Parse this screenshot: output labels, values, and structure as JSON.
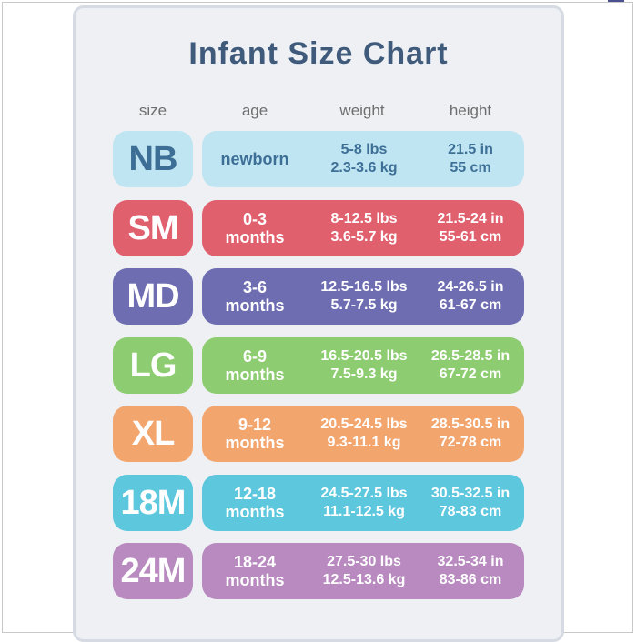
{
  "title": "Infant Size Chart",
  "headers": {
    "size": "size",
    "age": "age",
    "weight": "weight",
    "height": "height"
  },
  "rows": [
    {
      "size": "NB",
      "age": [
        "newborn"
      ],
      "weight": [
        "5-8 lbs",
        "2.3-3.6 kg"
      ],
      "height": [
        "21.5 in",
        "55 cm"
      ],
      "color": "#bfe4f2",
      "light": true
    },
    {
      "size": "SM",
      "age": [
        "0-3",
        "months"
      ],
      "weight": [
        "8-12.5 lbs",
        "3.6-5.7 kg"
      ],
      "height": [
        "21.5-24 in",
        "55-61 cm"
      ],
      "color": "#e1606e"
    },
    {
      "size": "MD",
      "age": [
        "3-6",
        "months"
      ],
      "weight": [
        "12.5-16.5 lbs",
        "5.7-7.5 kg"
      ],
      "height": [
        "24-26.5 in",
        "61-67 cm"
      ],
      "color": "#6e6db2"
    },
    {
      "size": "LG",
      "age": [
        "6-9",
        "months"
      ],
      "weight": [
        "16.5-20.5 lbs",
        "7.5-9.3 kg"
      ],
      "height": [
        "26.5-28.5 in",
        "67-72 cm"
      ],
      "color": "#8dcc70"
    },
    {
      "size": "XL",
      "age": [
        "9-12",
        "months"
      ],
      "weight": [
        "20.5-24.5 lbs",
        "9.3-11.1 kg"
      ],
      "height": [
        "28.5-30.5 in",
        "72-78 cm"
      ],
      "color": "#f3a56e"
    },
    {
      "size": "18M",
      "age": [
        "12-18",
        "months"
      ],
      "weight": [
        "24.5-27.5 lbs",
        "11.1-12.5 kg"
      ],
      "height": [
        "30.5-32.5 in",
        "78-83 cm"
      ],
      "color": "#5cc7dd"
    },
    {
      "size": "24M",
      "age": [
        "18-24",
        "months"
      ],
      "weight": [
        "27.5-30 lbs",
        "12.5-13.6 kg"
      ],
      "height": [
        "32.5-34 in",
        "83-86 cm"
      ],
      "color": "#b88abf"
    }
  ]
}
